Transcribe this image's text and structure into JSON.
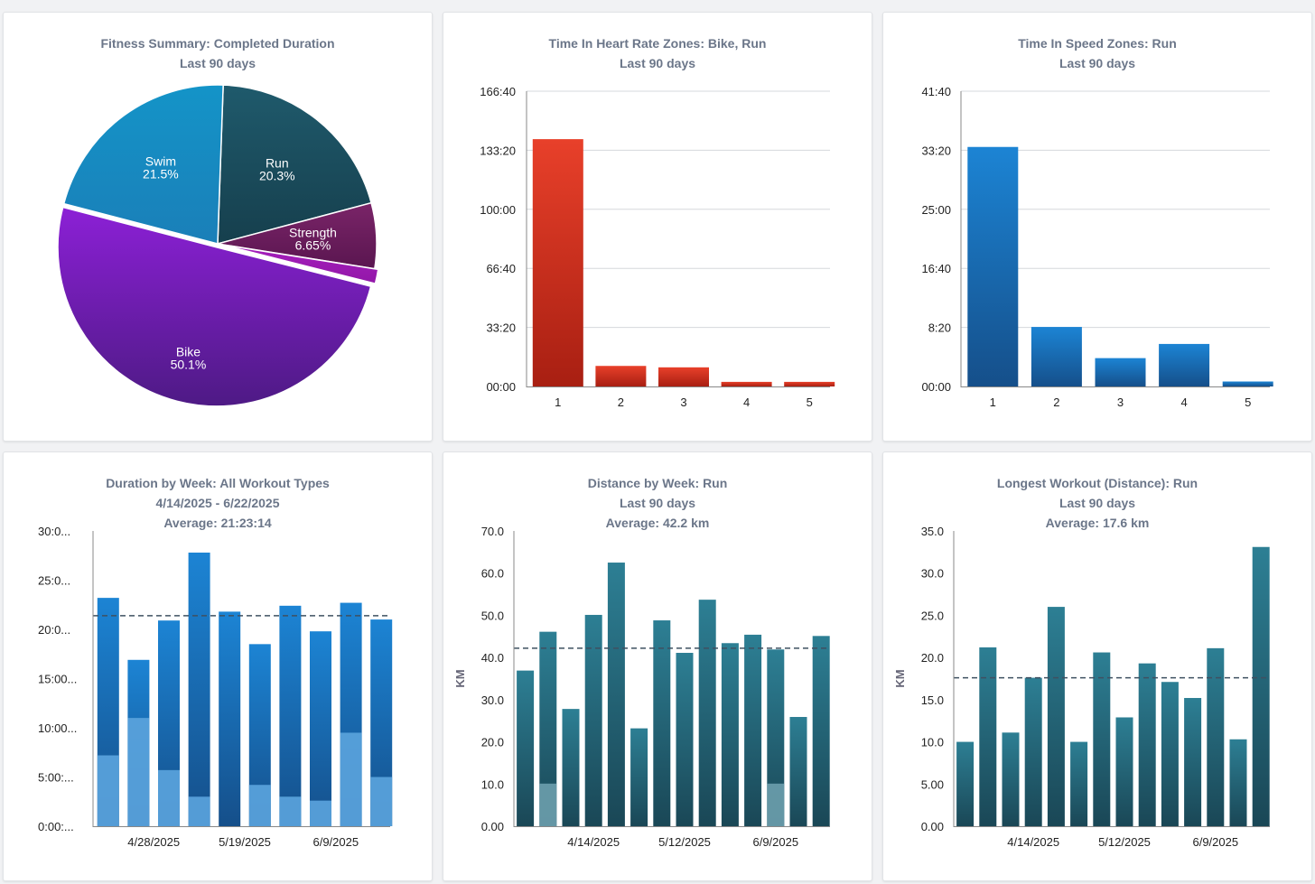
{
  "colors": {
    "red_top": "#e8402a",
    "red_bottom": "#a81f12",
    "blue_top": "#1c84d4",
    "blue_bottom": "#154f8a",
    "blue_light": "#5aa3dc",
    "teal_top": "#2d7f94",
    "teal_bottom": "#1a4756",
    "teal_light": "#6a9dab",
    "grid": "#d5d8dc",
    "dashed": "#3f5061"
  },
  "chart_data": [
    {
      "id": "fitness-summary",
      "type": "pie",
      "title": "Fitness Summary: Completed Duration",
      "subtitle": "Last 90 days",
      "subtitle2": "",
      "slices": [
        {
          "name": "Run",
          "label": "20.3%",
          "value": 20.3,
          "color_top": "#1f5a6c",
          "color_bottom": "#163f4d"
        },
        {
          "name": "Strength",
          "label": "6.65%",
          "value": 6.65,
          "color_top": "#7a2468",
          "color_bottom": "#5a1650"
        },
        {
          "name": "",
          "label": "",
          "value": 1.45,
          "color_top": "#a61fbd",
          "color_bottom": "#9217a8"
        },
        {
          "name": "Bike",
          "label": "50.1%",
          "value": 50.1,
          "color_top": "#8c20d6",
          "color_bottom": "#4e1a85"
        },
        {
          "name": "Swim",
          "label": "21.5%",
          "value": 21.5,
          "color_top": "#1494c8",
          "color_bottom": "#1a7fb8"
        }
      ]
    },
    {
      "id": "hr-zones",
      "type": "bar",
      "title": "Time In Heart Rate Zones: Bike, Run",
      "subtitle": "Last 90 days",
      "subtitle2": "",
      "color": "red",
      "categories": [
        "1",
        "2",
        "3",
        "4",
        "5"
      ],
      "values": [
        139.6,
        11.6,
        10.8,
        2.6,
        2.6
      ],
      "ylim": [
        0,
        166.667
      ],
      "yticks": [
        0,
        33.333,
        66.667,
        100,
        133.333,
        166.667
      ],
      "ytick_labels": [
        "00:00",
        "33:20",
        "66:40",
        "100:00",
        "133:20",
        "166:40"
      ]
    },
    {
      "id": "speed-zones",
      "type": "bar",
      "title": "Time In Speed Zones: Run",
      "subtitle": "Last 90 days",
      "subtitle2": "",
      "color": "blue",
      "categories": [
        "1",
        "2",
        "3",
        "4",
        "5"
      ],
      "values": [
        33.8,
        8.4,
        4.0,
        6.0,
        0.7
      ],
      "ylim": [
        0,
        41.667
      ],
      "yticks": [
        0,
        8.333,
        16.667,
        25,
        33.333,
        41.667
      ],
      "ytick_labels": [
        "00:00",
        "8:20",
        "16:40",
        "25:00",
        "33:20",
        "41:40"
      ]
    },
    {
      "id": "duration-by-week",
      "type": "bar",
      "title": "Duration by Week: All Workout Types",
      "subtitle": "4/14/2025 - 6/22/2025",
      "subtitle2": "Average: 21:23:14",
      "color": "blue",
      "stacked": true,
      "values": [
        23.2,
        16.9,
        20.9,
        27.8,
        21.8,
        18.5,
        22.4,
        19.8,
        22.7,
        21.0
      ],
      "lower_values": [
        7.2,
        11.0,
        5.7,
        3.0,
        0,
        4.2,
        3.0,
        2.6,
        9.5,
        5.0
      ],
      "average": 21.39,
      "ylim": [
        0,
        30
      ],
      "yticks": [
        0,
        5,
        10,
        15,
        20,
        25,
        30
      ],
      "ytick_labels": [
        "0:00:...",
        "5:00:...",
        "10:00...",
        "15:00...",
        "20:0...",
        "25:0...",
        "30:0..."
      ],
      "xtick_labels": [
        {
          "at": 2,
          "label": "4/28/2025"
        },
        {
          "at": 5,
          "label": "5/19/2025"
        },
        {
          "at": 8,
          "label": "6/9/2025"
        }
      ]
    },
    {
      "id": "distance-by-week",
      "type": "bar",
      "title": "Distance by Week: Run",
      "subtitle": "Last 90 days",
      "subtitle2": "Average: 42.2 km",
      "ylabel": "KM",
      "color": "teal",
      "stacked": true,
      "values": [
        36.9,
        46.1,
        27.8,
        50.1,
        62.5,
        23.2,
        48.8,
        41.1,
        53.7,
        43.4,
        45.4,
        41.9,
        25.9,
        45.1
      ],
      "lower_values": [
        0,
        10.1,
        0,
        0,
        0,
        0,
        0,
        0,
        0,
        0,
        0,
        10.1,
        0,
        0
      ],
      "average": 42.2,
      "ylim": [
        0,
        70
      ],
      "yticks": [
        0,
        10,
        20,
        30,
        40,
        50,
        60,
        70
      ],
      "ytick_labels": [
        "0.00",
        "10.0",
        "20.0",
        "30.0",
        "40.0",
        "50.0",
        "60.0",
        "70.0"
      ],
      "xtick_labels": [
        {
          "at": 3.5,
          "label": "4/14/2025"
        },
        {
          "at": 7.5,
          "label": "5/12/2025"
        },
        {
          "at": 11.5,
          "label": "6/9/2025"
        }
      ]
    },
    {
      "id": "longest-workout",
      "type": "bar",
      "title": "Longest Workout (Distance): Run",
      "subtitle": "Last 90 days",
      "subtitle2": "Average: 17.6 km",
      "ylabel": "KM",
      "color": "teal",
      "stacked": false,
      "values": [
        10.0,
        21.2,
        11.1,
        17.6,
        26.0,
        10.0,
        20.6,
        12.9,
        19.3,
        17.1,
        15.2,
        21.1,
        10.3,
        33.1
      ],
      "average": 17.6,
      "ylim": [
        0,
        35
      ],
      "yticks": [
        0,
        5,
        10,
        15,
        20,
        25,
        30,
        35
      ],
      "ytick_labels": [
        "0.00",
        "5.00",
        "10.0",
        "15.0",
        "20.0",
        "25.0",
        "30.0",
        "35.0"
      ],
      "xtick_labels": [
        {
          "at": 3.5,
          "label": "4/14/2025"
        },
        {
          "at": 7.5,
          "label": "5/12/2025"
        },
        {
          "at": 11.5,
          "label": "6/9/2025"
        }
      ]
    }
  ]
}
